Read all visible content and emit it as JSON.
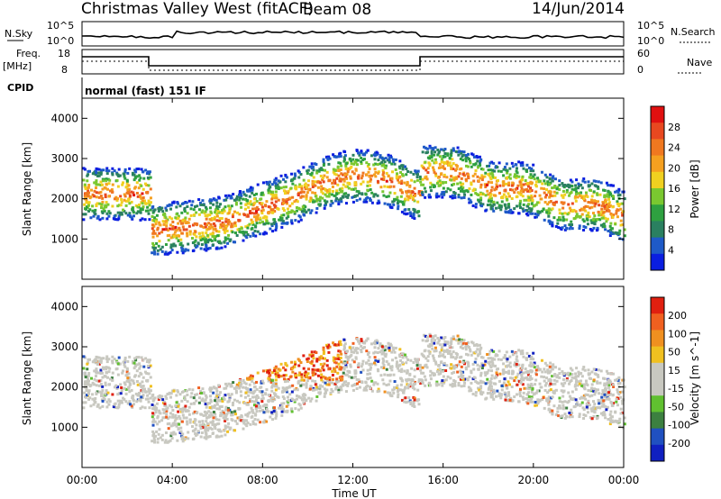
{
  "header": {
    "station": "Christmas Valley West (fitACF)",
    "beam": "Beam 08",
    "date": "14/Jun/2014"
  },
  "top_panels": {
    "nsky_label": "N.Sky",
    "nsky_ticks": [
      "10^5",
      "10^0"
    ],
    "nsearch_label": "N.Search",
    "freq_label_1": "Freq.",
    "freq_label_2": "[MHz]",
    "freq_ticks": [
      "18",
      "8"
    ],
    "nave_label": "Nave",
    "nave_ticks": [
      "60",
      "0"
    ],
    "cpid_label": "CPID",
    "cpid_text": "normal (fast) 151 IF"
  },
  "chart_data": [
    {
      "type": "heatmap",
      "ylabel": "Slant Range [km]",
      "xlabel": "Time UT",
      "x_ticks": [
        "00:00",
        "04:00",
        "08:00",
        "12:00",
        "16:00",
        "20:00",
        "00:00"
      ],
      "y_ticks": [
        1000,
        2000,
        3000,
        4000
      ],
      "ylim": [
        0,
        4500
      ],
      "xlim_hours": [
        0,
        24
      ],
      "colorbar": {
        "label": "Power [dB]",
        "ticks": [
          4,
          8,
          12,
          16,
          20,
          24,
          28
        ],
        "colors": [
          "#0a1ee0",
          "#1e5ac8",
          "#2a8060",
          "#2ea040",
          "#7ac830",
          "#f0d020",
          "#f5a020",
          "#f07820",
          "#e84820",
          "#e01010"
        ]
      }
    },
    {
      "type": "heatmap",
      "ylabel": "Slant Range [km]",
      "xlabel": "Time UT",
      "y_ticks": [
        1000,
        2000,
        3000,
        4000
      ],
      "ylim": [
        0,
        4500
      ],
      "colorbar": {
        "label": "Velocity [m s^-1]",
        "ticks": [
          "200",
          "100",
          "50",
          "15",
          "-15",
          "-50",
          "-100",
          "-200"
        ],
        "colors": [
          "#1020c0",
          "#2050c0",
          "#3c8040",
          "#60c030",
          "#c8c8c0",
          "#c8c8c0",
          "#f0c020",
          "#f09020",
          "#f06020",
          "#e02010"
        ]
      }
    }
  ]
}
